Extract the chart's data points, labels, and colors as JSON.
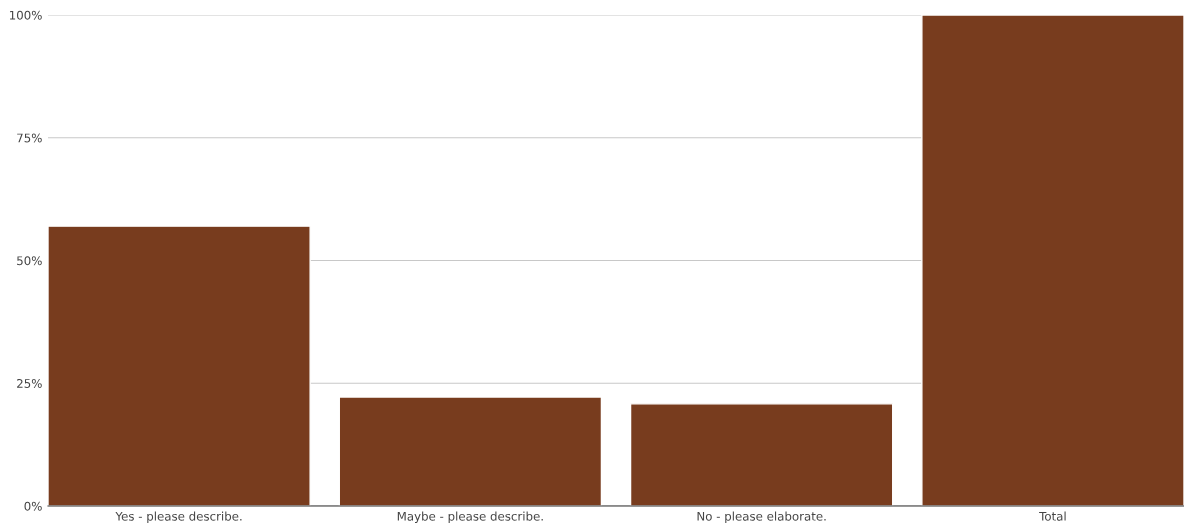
{
  "chart_data": {
    "type": "bar",
    "categories": [
      "Yes - please describe.",
      "Maybe - please describe.",
      "No - please elaborate.",
      "Total"
    ],
    "values": [
      57.0,
      22.2,
      20.8,
      100
    ],
    "color": "#783c1e",
    "ylim": [
      0,
      100
    ],
    "yticks": [
      {
        "value": 0,
        "label": "0%"
      },
      {
        "value": 25,
        "label": "25%"
      },
      {
        "value": 50,
        "label": "50%"
      },
      {
        "value": 75,
        "label": "75%"
      },
      {
        "value": 100,
        "label": "100%"
      }
    ],
    "grid": "y"
  }
}
